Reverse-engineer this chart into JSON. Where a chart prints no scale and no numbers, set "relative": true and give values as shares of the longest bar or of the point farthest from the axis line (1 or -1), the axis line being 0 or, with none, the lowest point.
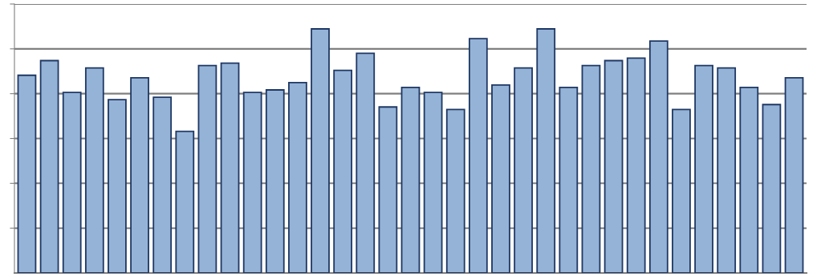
{
  "chart_data": {
    "type": "bar",
    "relative": true,
    "categories": [
      null,
      null,
      null,
      null,
      null,
      null,
      null,
      null,
      null,
      null,
      null,
      null,
      null,
      null,
      null,
      null,
      null,
      null,
      null,
      null,
      null,
      null,
      null,
      null,
      null,
      null,
      null,
      null,
      null,
      null,
      null,
      null,
      null,
      null,
      null
    ],
    "values": [
      0.81,
      0.87,
      0.74,
      0.84,
      0.71,
      0.8,
      0.72,
      0.58,
      0.85,
      0.86,
      0.74,
      0.75,
      0.78,
      1.0,
      0.83,
      0.9,
      0.68,
      0.76,
      0.74,
      0.67,
      0.96,
      0.77,
      0.84,
      1.0,
      0.76,
      0.85,
      0.87,
      0.88,
      0.95,
      0.67,
      0.85,
      0.84,
      0.76,
      0.69,
      0.8
    ],
    "color": "#95b3d7",
    "grid": "y",
    "tick_labels": false
  }
}
